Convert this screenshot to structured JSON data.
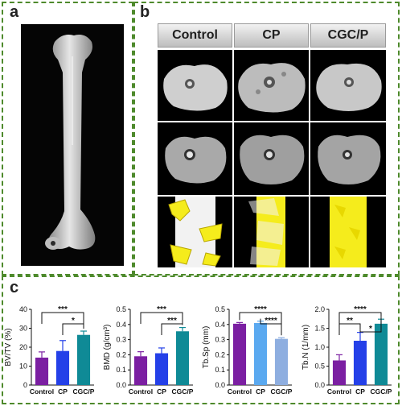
{
  "panels": {
    "a": "a",
    "b": "b",
    "c": "c"
  },
  "panel_b": {
    "columns": [
      "Control",
      "CP",
      "CGC/P"
    ]
  },
  "colors": {
    "control": "#7b1fa2",
    "cp": "#2440e8",
    "cgcp": "#0f8a96",
    "cp_light": "#5aa9f0",
    "cgcp_light": "#8eaee0",
    "border": "#4e8a2c",
    "bone": "#cfcfcf",
    "scaffold": "#f5ec1c"
  },
  "chart_data": [
    {
      "type": "bar",
      "ylabel": "BV/TV (%)",
      "categories": [
        "Control",
        "CP",
        "CGC/P"
      ],
      "values": [
        14.5,
        18,
        26.5
      ],
      "errors": [
        3,
        5.5,
        2
      ],
      "ylim": [
        0,
        40
      ],
      "yticks": [
        "0",
        "10",
        "20",
        "30",
        "40"
      ],
      "colors": [
        "#7b1fa2",
        "#2440e8",
        "#0f8a96"
      ],
      "significance": [
        {
          "from": 0,
          "to": 2,
          "label": "***"
        },
        {
          "from": 1,
          "to": 2,
          "label": "*"
        }
      ]
    },
    {
      "type": "bar",
      "ylabel": "BMD (g/cm³)",
      "categories": [
        "Control",
        "CP",
        "CGC/P"
      ],
      "values": [
        0.19,
        0.21,
        0.355
      ],
      "errors": [
        0.03,
        0.035,
        0.025
      ],
      "ylim": [
        0,
        0.5
      ],
      "yticks": [
        "0.0",
        "0.1",
        "0.2",
        "0.3",
        "0.4",
        "0.5"
      ],
      "colors": [
        "#7b1fa2",
        "#2440e8",
        "#0f8a96"
      ],
      "significance": [
        {
          "from": 0,
          "to": 2,
          "label": "***"
        },
        {
          "from": 1,
          "to": 2,
          "label": "***"
        }
      ]
    },
    {
      "type": "bar",
      "ylabel": "Tb.Sp (mm)",
      "categories": [
        "Control",
        "CP",
        "CGC/P"
      ],
      "values": [
        0.405,
        0.41,
        0.305
      ],
      "errors": [
        0.008,
        0.012,
        0.008
      ],
      "ylim": [
        0,
        0.5
      ],
      "yticks": [
        "0.0",
        "0.1",
        "0.2",
        "0.3",
        "0.4",
        "0.5"
      ],
      "colors": [
        "#7b1fa2",
        "#5aa9f0",
        "#8eaee0"
      ],
      "significance": [
        {
          "from": 0,
          "to": 2,
          "label": "****"
        },
        {
          "from": 1,
          "to": 2,
          "label": "****"
        }
      ]
    },
    {
      "type": "bar",
      "ylabel": "Tb.N (1/mm)",
      "categories": [
        "Control",
        "CP",
        "CGC/P"
      ],
      "values": [
        0.65,
        1.17,
        1.62
      ],
      "errors": [
        0.15,
        0.22,
        0.12
      ],
      "ylim": [
        0,
        2.0
      ],
      "yticks": [
        "0.0",
        "0.5",
        "1.0",
        "1.5",
        "2.0"
      ],
      "colors": [
        "#7b1fa2",
        "#2440e8",
        "#0f8a96"
      ],
      "significance": [
        {
          "from": 0,
          "to": 2,
          "label": "****"
        },
        {
          "from": 0,
          "to": 1,
          "label": "**"
        },
        {
          "from": 1,
          "to": 2,
          "label": "*"
        }
      ]
    }
  ]
}
